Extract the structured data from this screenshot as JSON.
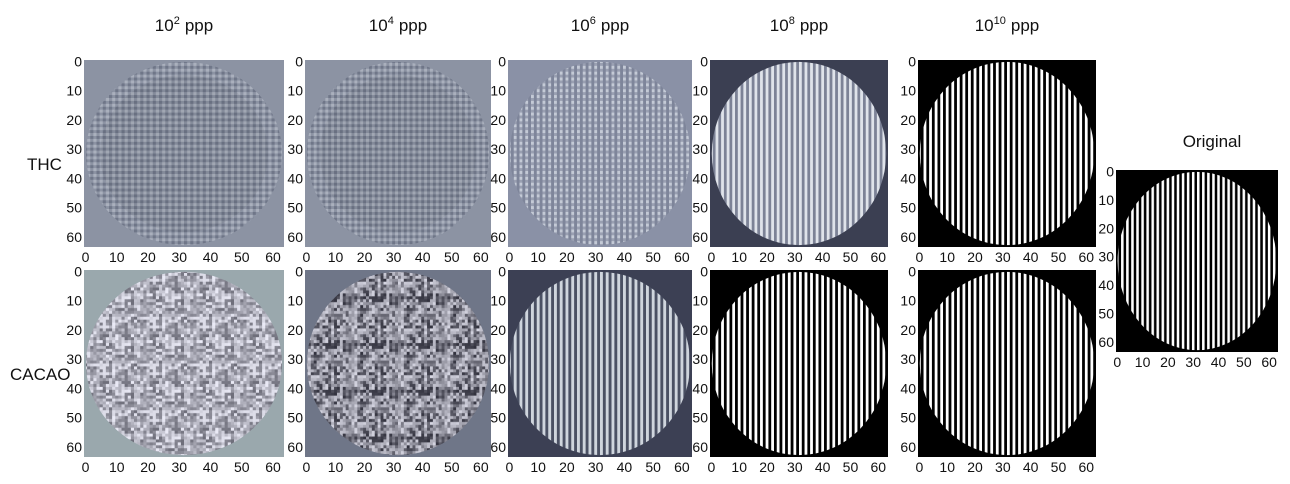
{
  "columns": [
    {
      "base": "10",
      "exponent": "2",
      "unit": "ppp"
    },
    {
      "base": "10",
      "exponent": "4",
      "unit": "ppp"
    },
    {
      "base": "10",
      "exponent": "6",
      "unit": "ppp"
    },
    {
      "base": "10",
      "exponent": "8",
      "unit": "ppp"
    },
    {
      "base": "10",
      "exponent": "10",
      "unit": "ppp"
    }
  ],
  "rows": [
    "THC",
    "CACAO"
  ],
  "original": {
    "title": "Original"
  },
  "axis": {
    "lim": [
      -0.5,
      63.5
    ],
    "ticks": [
      0,
      10,
      20,
      30,
      40,
      50,
      60
    ]
  }
}
